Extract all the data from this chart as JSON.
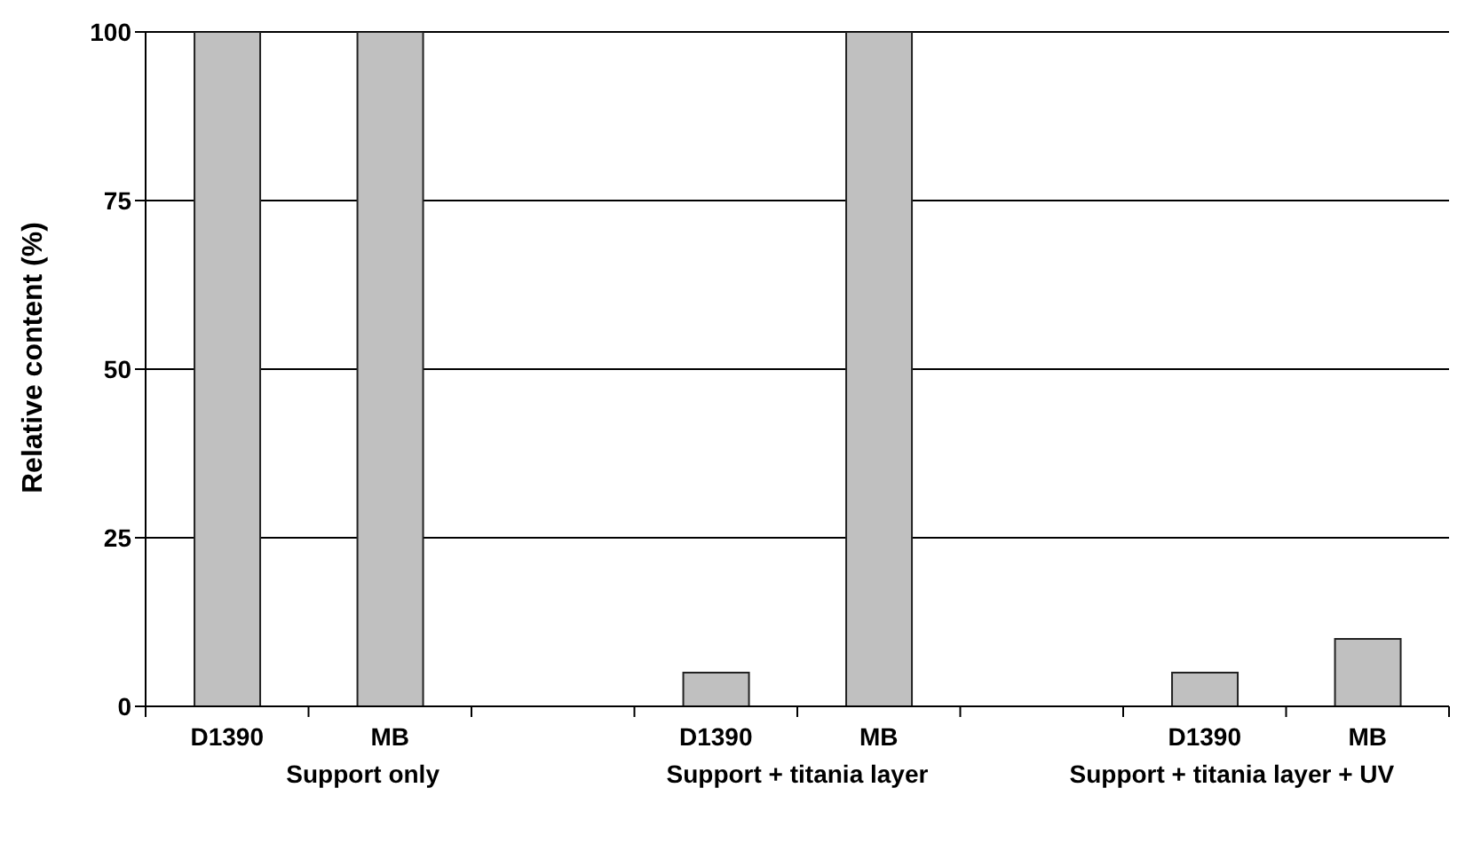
{
  "chart_data": {
    "type": "bar",
    "ylabel": "Relative content (%)",
    "categories": [
      "D1390",
      "MB",
      null,
      "D1390",
      "MB",
      null,
      "D1390",
      "MB"
    ],
    "values": [
      100,
      100,
      null,
      5,
      100,
      null,
      5,
      10
    ],
    "color": "#c0c0c0",
    "ylim": [
      0,
      100
    ],
    "yticks": [
      0,
      25,
      50,
      75,
      100
    ],
    "grid": "y",
    "annotations": [
      "Support only",
      "Support + titania layer",
      "Support + titania layer + UV"
    ]
  }
}
